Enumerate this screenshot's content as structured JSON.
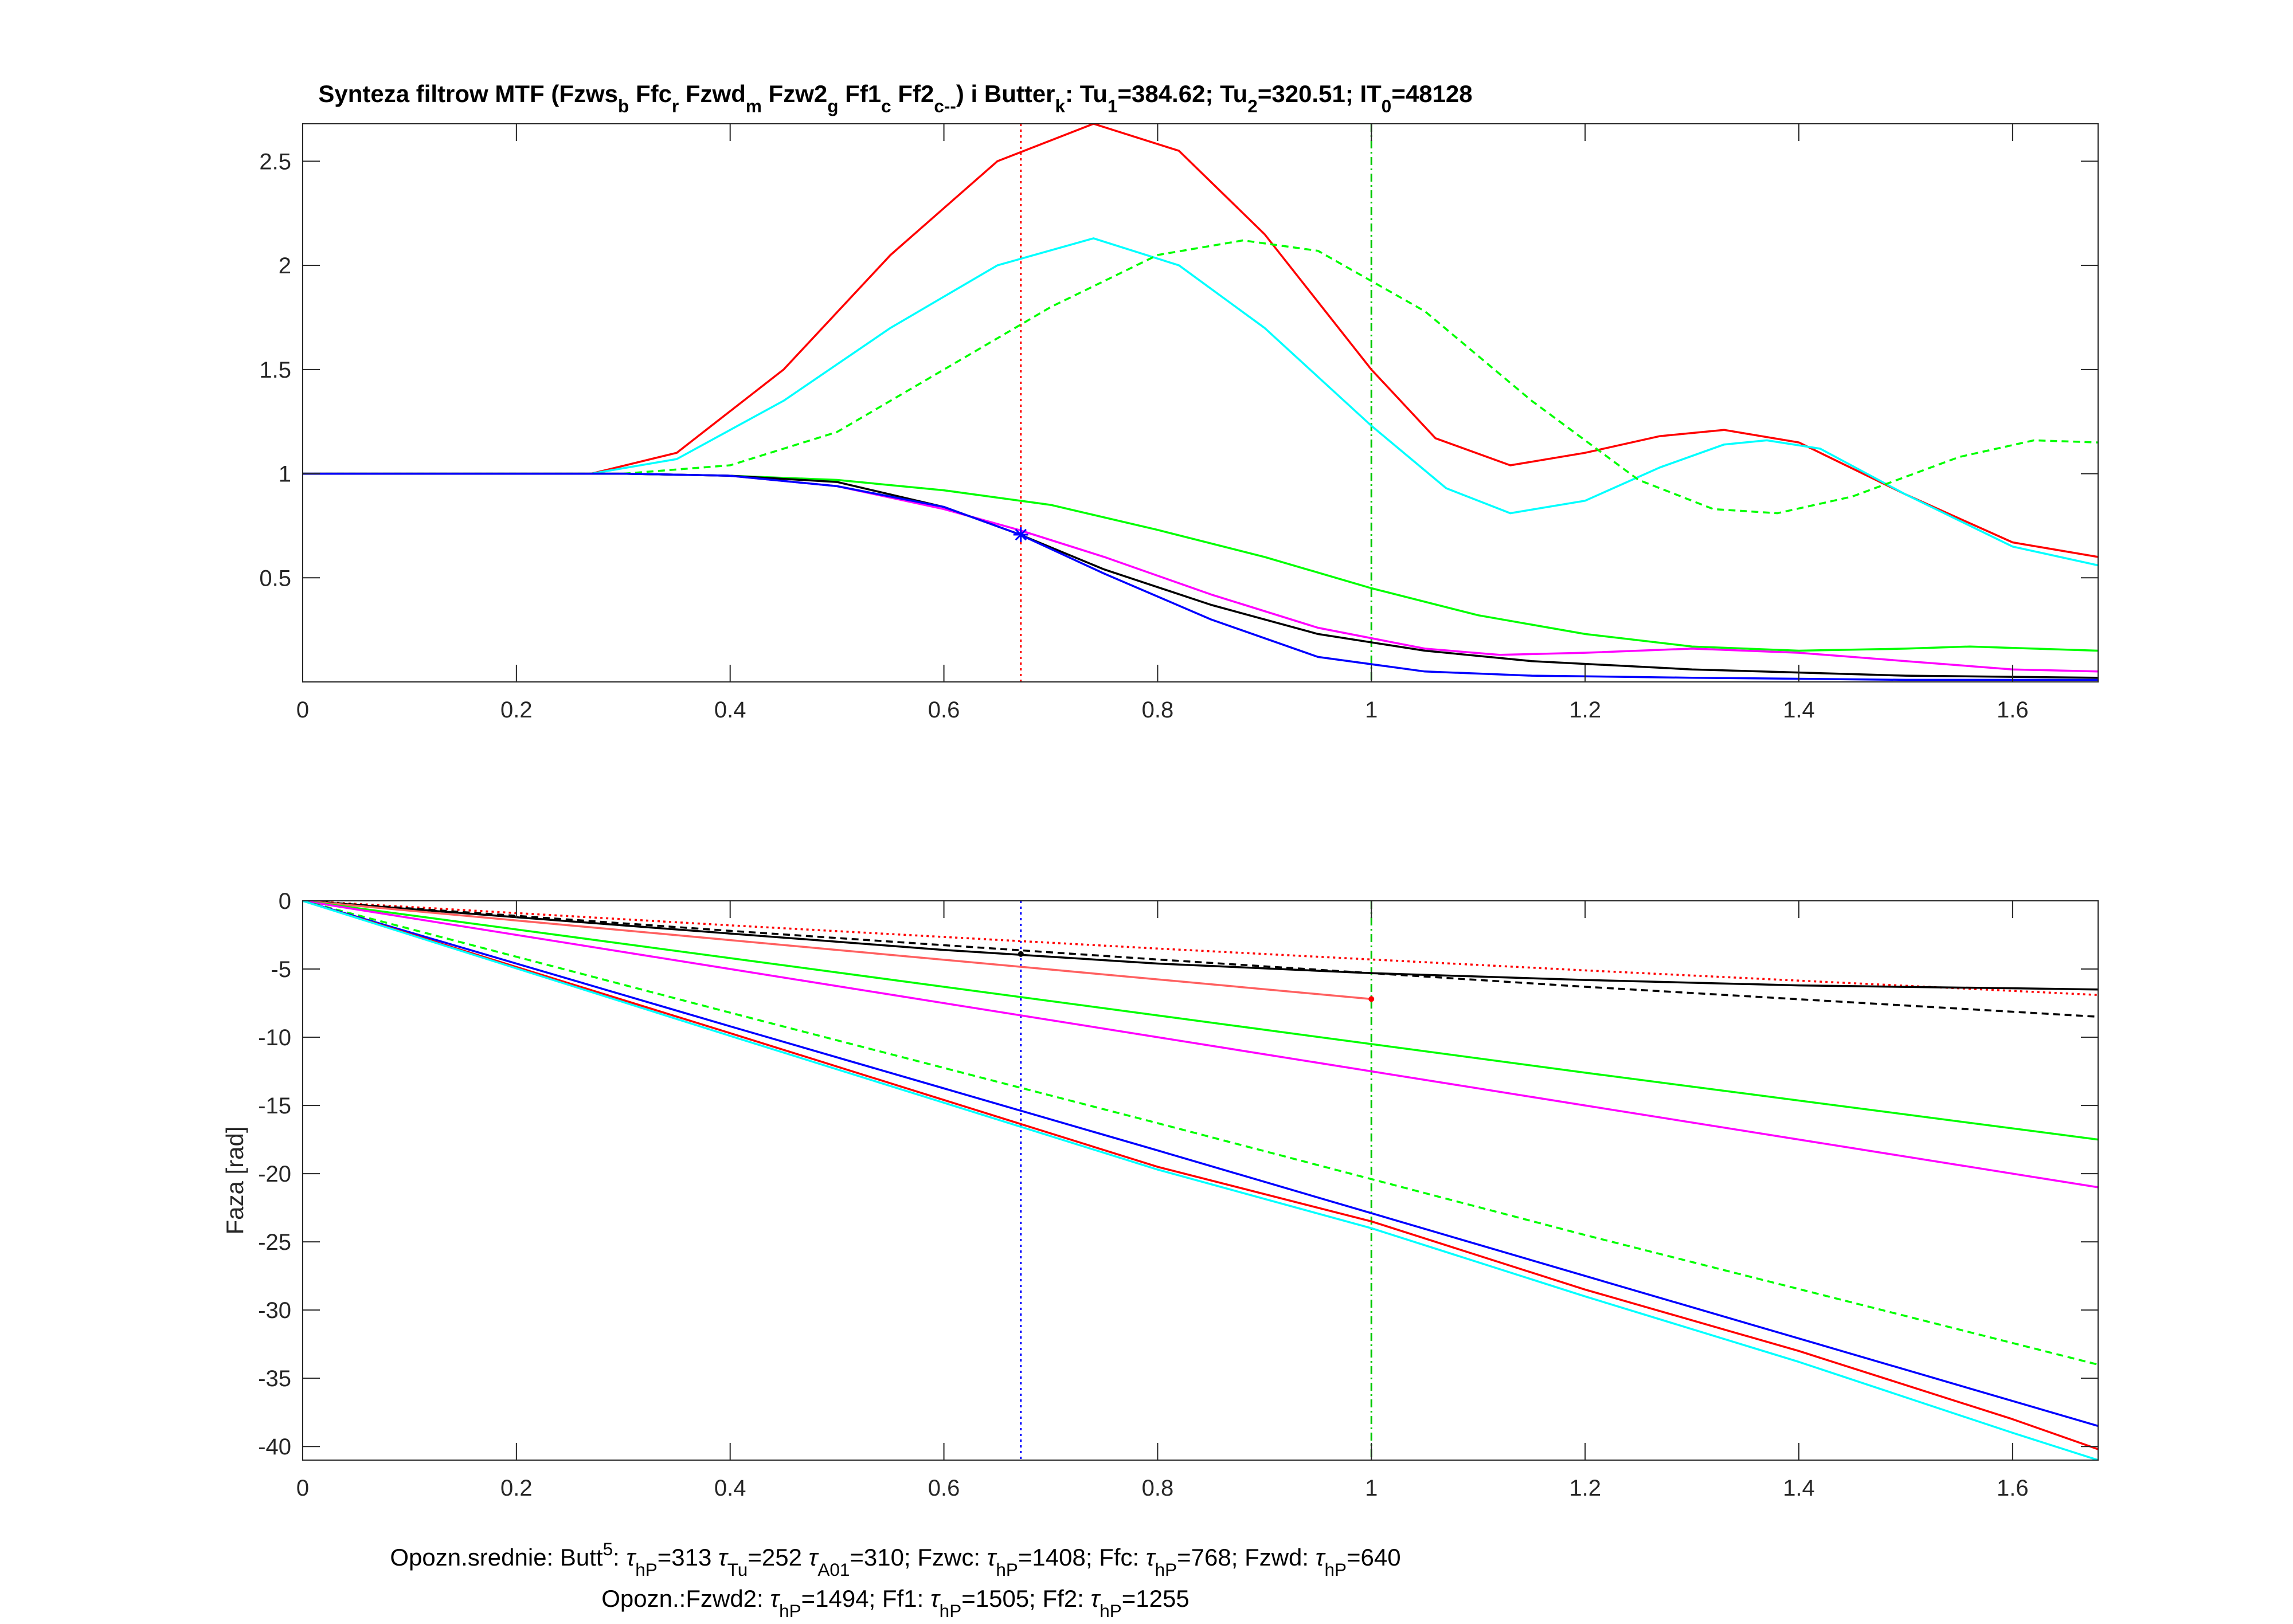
{
  "chart_data": [
    {
      "type": "line",
      "title_runs": [
        {
          "t": "Synteza filtrow MTF (Fzws"
        },
        {
          "t": "b",
          "sub": true
        },
        {
          "t": " Ffc"
        },
        {
          "t": "r",
          "sub": true
        },
        {
          "t": " Fzwd"
        },
        {
          "t": "m",
          "sub": true
        },
        {
          "t": " Fzw2"
        },
        {
          "t": "g",
          "sub": true
        },
        {
          "t": " Ff1"
        },
        {
          "t": "c",
          "sub": true
        },
        {
          "t": " Ff2"
        },
        {
          "t": "c--",
          "sub": true
        },
        {
          "t": ") i Butter"
        },
        {
          "t": "k",
          "sub": true
        },
        {
          "t": ": Tu"
        },
        {
          "t": "1",
          "sub": true
        },
        {
          "t": "=384.62; Tu"
        },
        {
          "t": "2",
          "sub": true
        },
        {
          "t": "=320.51; IT"
        },
        {
          "t": "0",
          "sub": true
        },
        {
          "t": "=48128"
        }
      ],
      "xlim": [
        0,
        1.68
      ],
      "ylim": [
        0,
        2.68
      ],
      "xticks": [
        0,
        0.2,
        0.4,
        0.6,
        0.8,
        1,
        1.2,
        1.4,
        1.6
      ],
      "xtick_labels": [
        "0",
        "0.2",
        "0.4",
        "0.6",
        "0.8",
        "1",
        "1.2",
        "1.4",
        "1.6"
      ],
      "yticks": [
        0.5,
        1,
        1.5,
        2,
        2.5
      ],
      "ytick_labels": [
        "0.5",
        "1",
        "1.5",
        "2",
        "2.5"
      ],
      "ylabel": "",
      "grid": false,
      "series": [
        {
          "color": "#ff0000",
          "style": "solid",
          "x": [
            0,
            0.27,
            0.35,
            0.45,
            0.55,
            0.65,
            0.74,
            0.82,
            0.9,
            1.0,
            1.06,
            1.13,
            1.2,
            1.27,
            1.33,
            1.4,
            1.5,
            1.6,
            1.68
          ],
          "y": [
            1,
            1,
            1.1,
            1.5,
            2.05,
            2.5,
            2.68,
            2.55,
            2.15,
            1.5,
            1.17,
            1.04,
            1.1,
            1.18,
            1.21,
            1.15,
            0.9,
            0.67,
            0.6
          ]
        },
        {
          "color": "#00ffff",
          "style": "solid",
          "x": [
            0,
            0.27,
            0.35,
            0.45,
            0.55,
            0.65,
            0.74,
            0.82,
            0.9,
            1.0,
            1.07,
            1.13,
            1.2,
            1.27,
            1.33,
            1.37,
            1.42,
            1.5,
            1.6,
            1.68
          ],
          "y": [
            1,
            1,
            1.07,
            1.35,
            1.7,
            2.0,
            2.13,
            2.0,
            1.7,
            1.23,
            0.93,
            0.81,
            0.87,
            1.03,
            1.14,
            1.16,
            1.12,
            0.9,
            0.65,
            0.56
          ]
        },
        {
          "color": "#00ff00",
          "style": "dashed",
          "x": [
            0,
            0.3,
            0.4,
            0.5,
            0.6,
            0.7,
            0.8,
            0.88,
            0.95,
            1.05,
            1.15,
            1.25,
            1.32,
            1.38,
            1.45,
            1.55,
            1.62,
            1.68
          ],
          "y": [
            1,
            1,
            1.04,
            1.2,
            1.5,
            1.8,
            2.05,
            2.12,
            2.07,
            1.78,
            1.35,
            0.97,
            0.83,
            0.81,
            0.89,
            1.08,
            1.16,
            1.15
          ]
        },
        {
          "color": "#00ff00",
          "style": "solid",
          "x": [
            0,
            0.3,
            0.4,
            0.5,
            0.6,
            0.7,
            0.8,
            0.9,
            1.0,
            1.1,
            1.2,
            1.3,
            1.4,
            1.5,
            1.56,
            1.62,
            1.68
          ],
          "y": [
            1,
            1,
            0.99,
            0.97,
            0.92,
            0.85,
            0.73,
            0.6,
            0.45,
            0.32,
            0.23,
            0.17,
            0.15,
            0.16,
            0.17,
            0.16,
            0.15
          ]
        },
        {
          "color": "#ff00ff",
          "style": "solid",
          "x": [
            0,
            0.3,
            0.4,
            0.5,
            0.6,
            0.67,
            0.75,
            0.85,
            0.95,
            1.05,
            1.12,
            1.2,
            1.3,
            1.4,
            1.5,
            1.6,
            1.68
          ],
          "y": [
            1,
            1,
            0.99,
            0.94,
            0.83,
            0.73,
            0.6,
            0.42,
            0.26,
            0.16,
            0.13,
            0.14,
            0.16,
            0.14,
            0.1,
            0.06,
            0.05
          ]
        },
        {
          "color": "#000000",
          "style": "solid",
          "x": [
            0,
            0.3,
            0.4,
            0.5,
            0.6,
            0.67,
            0.75,
            0.85,
            0.95,
            1.05,
            1.15,
            1.3,
            1.5,
            1.68
          ],
          "y": [
            1,
            1,
            0.99,
            0.96,
            0.84,
            0.71,
            0.54,
            0.37,
            0.23,
            0.15,
            0.1,
            0.06,
            0.03,
            0.02
          ]
        },
        {
          "color": "#0000ff",
          "style": "solid",
          "x": [
            0,
            0.3,
            0.4,
            0.5,
            0.6,
            0.67,
            0.75,
            0.85,
            0.95,
            1.05,
            1.15,
            1.3,
            1.5,
            1.68
          ],
          "y": [
            1,
            1,
            0.99,
            0.94,
            0.84,
            0.71,
            0.52,
            0.3,
            0.12,
            0.05,
            0.03,
            0.02,
            0.01,
            0.01
          ]
        }
      ],
      "vlines": [
        {
          "x": 0.672,
          "color": "#ff0000",
          "style": "dotted"
        },
        {
          "x": 1.0,
          "color": "#00c800",
          "style": "dashdot"
        }
      ],
      "markers": [
        {
          "x": 0.672,
          "y": 0.707,
          "color": "#0000ff",
          "symbol": "*"
        }
      ]
    },
    {
      "type": "line",
      "xlim": [
        0,
        1.68
      ],
      "ylim": [
        -41,
        0
      ],
      "xticks": [
        0,
        0.2,
        0.4,
        0.6,
        0.8,
        1,
        1.2,
        1.4,
        1.6
      ],
      "xtick_labels": [
        "0",
        "0.2",
        "0.4",
        "0.6",
        "0.8",
        "1",
        "1.2",
        "1.4",
        "1.6"
      ],
      "yticks": [
        0,
        -5,
        -10,
        -15,
        -20,
        -25,
        -30,
        -35,
        -40
      ],
      "ytick_labels": [
        "0",
        "-5",
        "-10",
        "-15",
        "-20",
        "-25",
        "-30",
        "-35",
        "-40"
      ],
      "ylabel": "Faza [rad]",
      "grid": false,
      "series": [
        {
          "color": "#ff0000",
          "style": "dotted",
          "x": [
            0,
            0.4,
            0.8,
            1.2,
            1.68
          ],
          "y": [
            0,
            -1.8,
            -3.5,
            -5.1,
            -6.9
          ]
        },
        {
          "color": "#000000",
          "style": "dashed",
          "x": [
            0,
            0.4,
            0.8,
            1.2,
            1.68
          ],
          "y": [
            0,
            -2.2,
            -4.3,
            -6.3,
            -8.5
          ]
        },
        {
          "color": "#000000",
          "style": "solid",
          "x": [
            0,
            0.2,
            0.4,
            0.6,
            0.8,
            1.0,
            1.2,
            1.4,
            1.68
          ],
          "y": [
            0,
            -1.2,
            -2.4,
            -3.6,
            -4.6,
            -5.3,
            -5.8,
            -6.2,
            -6.5
          ]
        },
        {
          "color": "#ff6060",
          "style": "solid",
          "x": [
            0,
            0.5,
            1.0
          ],
          "y": [
            0,
            -3.6,
            -7.2
          ]
        },
        {
          "color": "#00ff00",
          "style": "solid",
          "x": [
            0,
            0.4,
            0.8,
            1.2,
            1.68
          ],
          "y": [
            0,
            -4.2,
            -8.4,
            -12.6,
            -17.5
          ]
        },
        {
          "color": "#ff00ff",
          "style": "solid",
          "x": [
            0,
            0.4,
            0.8,
            1.2,
            1.68
          ],
          "y": [
            0,
            -5.0,
            -10.0,
            -15.0,
            -21.0
          ]
        },
        {
          "color": "#00ff00",
          "style": "dashed",
          "x": [
            0,
            0.4,
            0.8,
            1.2,
            1.68
          ],
          "y": [
            0,
            -8.2,
            -16.3,
            -24.5,
            -34.0
          ]
        },
        {
          "color": "#0000ff",
          "style": "solid",
          "x": [
            0,
            0.4,
            0.8,
            1.2,
            1.68
          ],
          "y": [
            0,
            -9.2,
            -18.3,
            -27.5,
            -38.5
          ]
        },
        {
          "color": "#ff0000",
          "style": "solid",
          "x": [
            0,
            0.4,
            0.8,
            1.0,
            1.2,
            1.4,
            1.6,
            1.68
          ],
          "y": [
            0,
            -9.7,
            -19.5,
            -23.5,
            -28.5,
            -33.0,
            -38.0,
            -40.2
          ]
        },
        {
          "color": "#00ffff",
          "style": "solid",
          "x": [
            0,
            0.4,
            0.8,
            1.0,
            1.2,
            1.4,
            1.6,
            1.68
          ],
          "y": [
            0,
            -9.9,
            -19.7,
            -24.0,
            -29.0,
            -33.8,
            -39.0,
            -41.0
          ]
        }
      ],
      "vlines": [
        {
          "x": 0.672,
          "color": "#0000ff",
          "style": "dotted"
        },
        {
          "x": 1.0,
          "color": "#00c800",
          "style": "dashdot"
        }
      ],
      "markers": [
        {
          "x": 0.672,
          "y": -3.9,
          "color": "#000000",
          "symbol": "dot"
        },
        {
          "x": 1.0,
          "y": -7.2,
          "color": "#ff0000",
          "symbol": "dot"
        }
      ]
    }
  ],
  "footer": {
    "line1": [
      {
        "t": "Opozn.srednie: Butt"
      },
      {
        "t": "5",
        "sup": true
      },
      {
        "t": ": "
      },
      {
        "t": "τ",
        "italic": true
      },
      {
        "t": "hP",
        "sub": true
      },
      {
        "t": "=313 "
      },
      {
        "t": "τ",
        "italic": true
      },
      {
        "t": "Tu",
        "sub": true
      },
      {
        "t": "=252 "
      },
      {
        "t": "τ",
        "italic": true
      },
      {
        "t": "A01",
        "sub": true
      },
      {
        "t": "=310; Fzwc: "
      },
      {
        "t": "τ",
        "italic": true
      },
      {
        "t": "hP",
        "sub": true
      },
      {
        "t": "=1408; Ffc: "
      },
      {
        "t": "τ",
        "italic": true
      },
      {
        "t": "hP",
        "sub": true
      },
      {
        "t": "=768; Fzwd: "
      },
      {
        "t": "τ",
        "italic": true
      },
      {
        "t": "hP",
        "sub": true
      },
      {
        "t": "=640"
      }
    ],
    "line2": [
      {
        "t": "Opozn.:Fzwd2: "
      },
      {
        "t": "τ",
        "italic": true
      },
      {
        "t": "hP",
        "sub": true
      },
      {
        "t": "=1494; Ff1: "
      },
      {
        "t": "τ",
        "italic": true
      },
      {
        "t": "hP",
        "sub": true
      },
      {
        "t": "=1505; Ff2: "
      },
      {
        "t": "τ",
        "italic": true
      },
      {
        "t": "hP",
        "sub": true
      },
      {
        "t": "=1255"
      }
    ]
  }
}
